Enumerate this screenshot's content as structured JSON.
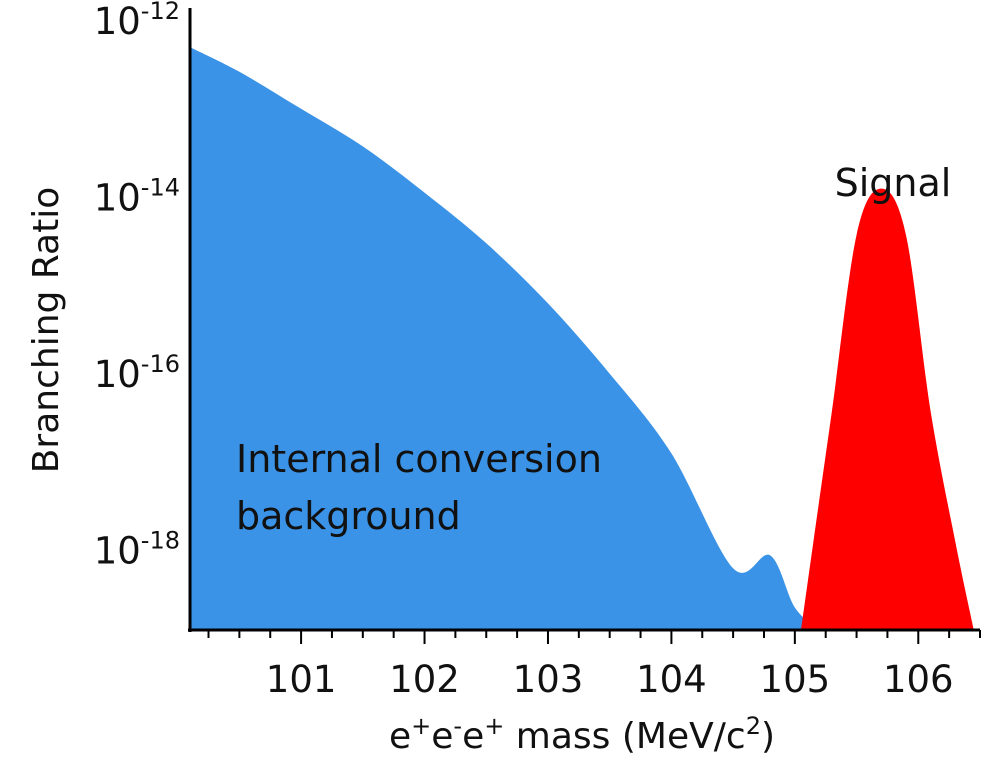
{
  "chart_data": {
    "type": "area",
    "x_axis": {
      "label_parts": [
        "e",
        "+",
        "e",
        "-",
        "e",
        "+",
        " mass (MeV/c",
        "2",
        ")"
      ],
      "range": [
        100.1,
        106.5
      ],
      "ticks": [
        101,
        102,
        103,
        104,
        105,
        106
      ],
      "tick_labels": [
        "101",
        "102",
        "103",
        "104",
        "105",
        "106"
      ],
      "minor_tick_step": 0.25
    },
    "y_axis": {
      "label": "Branching Ratio",
      "scale": "log",
      "range": [
        1e-19,
        1e-12
      ],
      "ticks": [
        1e-12,
        1e-14,
        1e-16,
        1e-18
      ],
      "tick_labels": [
        {
          "base": "10",
          "exp": "-12"
        },
        {
          "base": "10",
          "exp": "-14"
        },
        {
          "base": "10",
          "exp": "-16"
        },
        {
          "base": "10",
          "exp": "-18"
        }
      ]
    },
    "series": [
      {
        "name": "Internal conversion background",
        "color": "#3a93e6",
        "points": [
          [
            100.1,
            4e-13
          ],
          [
            100.5,
            2.1e-13
          ],
          [
            101.0,
            8e-14
          ],
          [
            101.5,
            3e-14
          ],
          [
            102.0,
            9e-15
          ],
          [
            102.5,
            2.4e-15
          ],
          [
            103.0,
            5e-16
          ],
          [
            103.5,
            8e-17
          ],
          [
            104.0,
            1e-17
          ],
          [
            104.5,
            5e-19
          ],
          [
            104.8,
            7e-19
          ],
          [
            105.0,
            1.8e-19
          ],
          [
            105.2,
            1e-19
          ]
        ]
      },
      {
        "name": "Signal",
        "color": "#ff0000",
        "points": [
          [
            105.05,
            1e-19
          ],
          [
            105.15,
            1e-18
          ],
          [
            105.3,
            3e-17
          ],
          [
            105.5,
            3e-15
          ],
          [
            105.7,
            1e-14
          ],
          [
            105.9,
            3e-15
          ],
          [
            106.1,
            3e-17
          ],
          [
            106.3,
            1e-18
          ],
          [
            106.45,
            1e-19
          ]
        ]
      }
    ],
    "annotations": [
      {
        "lines": [
          "Internal conversion",
          "background"
        ]
      },
      {
        "lines": [
          "Signal"
        ]
      }
    ]
  }
}
